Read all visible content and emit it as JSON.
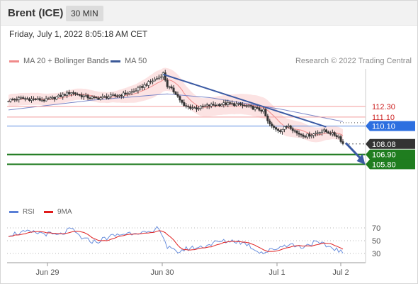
{
  "header": {
    "title": "Brent (ICE)",
    "timeframe": "30 MIN"
  },
  "date_line": "Friday, July 1, 2022 8:05:18 AM CET",
  "legend": {
    "items": [
      {
        "label": "MA 20 + Bollinger Bands",
        "color": "#f08a8a"
      },
      {
        "label": "MA 50",
        "color": "#3b5998"
      }
    ],
    "credit": "Research © 2022 Trading Central"
  },
  "rsi_legend": {
    "items": [
      {
        "label": "RSI",
        "color": "#5a7fd6"
      },
      {
        "label": "9MA",
        "color": "#e01b1b"
      }
    ]
  },
  "colors": {
    "candle_up": "#ffffff",
    "candle_down": "#333333",
    "bollinger_fill": "#fbd9d9",
    "ma20": "#f08a8a",
    "ma50": "#7a86c8",
    "trend": "#3b5aa3",
    "res_line": "#f29a9a",
    "pivot_line": "#5a8ae0",
    "support_line": "#1f7a1f",
    "badge_support": "#1f7d1f",
    "badge_pivot": "#2d6fe0",
    "badge_price": "#333333",
    "rsi": "#6a8fdd",
    "rsi_ma": "#e02020"
  },
  "chart_data": {
    "type": "candlestick",
    "title": "Brent (ICE)",
    "timeframe": "30 MIN",
    "x_tick_labels": [
      "Jun 29",
      "Jun 30",
      "Jul 1",
      "Jul 2"
    ],
    "price_axis_range": [
      105.6,
      116.5
    ],
    "price_levels": [
      {
        "label": "112.30",
        "value": 112.3,
        "kind": "resistance"
      },
      {
        "label": "111.10",
        "value": 111.1,
        "kind": "resistance"
      },
      {
        "label": "110.10",
        "value": 110.1,
        "kind": "pivot"
      },
      {
        "label": "108.08",
        "value": 108.08,
        "kind": "last"
      },
      {
        "label": "106.90",
        "value": 106.9,
        "kind": "support"
      },
      {
        "label": "105.80",
        "value": 105.8,
        "kind": "support"
      }
    ],
    "close_anchors": [
      [
        0,
        113.0
      ],
      [
        6,
        113.2
      ],
      [
        12,
        113.1
      ],
      [
        18,
        113.0
      ],
      [
        24,
        113.4
      ],
      [
        30,
        113.9
      ],
      [
        36,
        113.4
      ],
      [
        42,
        113.2
      ],
      [
        48,
        113.4
      ],
      [
        54,
        113.6
      ],
      [
        60,
        114.0
      ],
      [
        66,
        114.8
      ],
      [
        72,
        115.6
      ],
      [
        74,
        116.0
      ],
      [
        76,
        114.6
      ],
      [
        80,
        113.8
      ],
      [
        84,
        112.3
      ],
      [
        90,
        112.1
      ],
      [
        96,
        112.4
      ],
      [
        104,
        112.6
      ],
      [
        110,
        112.5
      ],
      [
        116,
        112.2
      ],
      [
        122,
        111.8
      ],
      [
        124,
        110.6
      ],
      [
        126,
        110.0
      ],
      [
        130,
        109.6
      ],
      [
        134,
        110.2
      ],
      [
        138,
        109.3
      ],
      [
        142,
        109.0
      ],
      [
        146,
        109.2
      ],
      [
        150,
        109.6
      ],
      [
        154,
        109.3
      ],
      [
        158,
        108.9
      ],
      [
        160,
        108.1
      ]
    ],
    "bollinger_half_width_anchors": [
      [
        0,
        0.7
      ],
      [
        50,
        0.6
      ],
      [
        70,
        1.4
      ],
      [
        90,
        1.0
      ],
      [
        120,
        1.2
      ],
      [
        140,
        0.9
      ],
      [
        160,
        0.7
      ]
    ],
    "ma50_anchors": [
      [
        0,
        111.9
      ],
      [
        40,
        113.0
      ],
      [
        76,
        113.7
      ],
      [
        96,
        113.3
      ],
      [
        130,
        112.0
      ],
      [
        160,
        110.6
      ]
    ],
    "trendline": {
      "from": [
        74,
        115.9
      ],
      "to": [
        152,
        110.0
      ]
    },
    "projection_arrow": {
      "from": [
        160,
        108.2
      ],
      "to": [
        170,
        106.0
      ]
    },
    "rsi": {
      "axis_ticks": [
        70,
        50,
        30
      ],
      "range": [
        20,
        80
      ],
      "anchors": [
        [
          0,
          60
        ],
        [
          8,
          63
        ],
        [
          16,
          62
        ],
        [
          24,
          58
        ],
        [
          30,
          68
        ],
        [
          36,
          52
        ],
        [
          42,
          48
        ],
        [
          48,
          56
        ],
        [
          54,
          60
        ],
        [
          62,
          64
        ],
        [
          68,
          60
        ],
        [
          72,
          72
        ],
        [
          76,
          40
        ],
        [
          80,
          32
        ],
        [
          86,
          38
        ],
        [
          92,
          40
        ],
        [
          100,
          48
        ],
        [
          108,
          50
        ],
        [
          114,
          45
        ],
        [
          118,
          36
        ],
        [
          122,
          31
        ],
        [
          128,
          38
        ],
        [
          134,
          45
        ],
        [
          140,
          40
        ],
        [
          146,
          47
        ],
        [
          150,
          44
        ],
        [
          156,
          38
        ],
        [
          160,
          31
        ]
      ],
      "ma_period": 9
    }
  }
}
